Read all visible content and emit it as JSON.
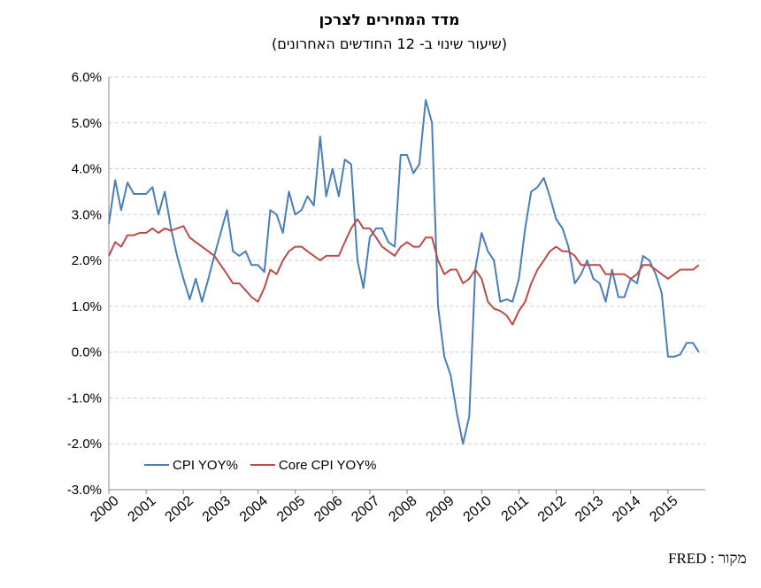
{
  "chart_data": {
    "type": "line",
    "title": "מדד המחירים לצרכן",
    "subtitle": "(שיעור שינוי ב- 12 החודשים האחרונים)",
    "source": "מקור : FRED",
    "x": [
      2000,
      2000.17,
      2000.33,
      2000.5,
      2000.67,
      2000.83,
      2001,
      2001.17,
      2001.33,
      2001.5,
      2001.67,
      2001.83,
      2002,
      2002.17,
      2002.33,
      2002.5,
      2002.67,
      2002.83,
      2003,
      2003.17,
      2003.33,
      2003.5,
      2003.67,
      2003.83,
      2004,
      2004.17,
      2004.33,
      2004.5,
      2004.67,
      2004.83,
      2005,
      2005.17,
      2005.33,
      2005.5,
      2005.67,
      2005.83,
      2006,
      2006.17,
      2006.33,
      2006.5,
      2006.67,
      2006.83,
      2007,
      2007.17,
      2007.33,
      2007.5,
      2007.67,
      2007.83,
      2008,
      2008.17,
      2008.33,
      2008.5,
      2008.67,
      2008.83,
      2009,
      2009.17,
      2009.33,
      2009.5,
      2009.67,
      2009.83,
      2010,
      2010.17,
      2010.33,
      2010.5,
      2010.67,
      2010.83,
      2011,
      2011.17,
      2011.33,
      2011.5,
      2011.67,
      2011.83,
      2012,
      2012.17,
      2012.33,
      2012.5,
      2012.67,
      2012.83,
      2013,
      2013.17,
      2013.33,
      2013.5,
      2013.67,
      2013.83,
      2014,
      2014.17,
      2014.33,
      2014.5,
      2014.67,
      2014.83,
      2015,
      2015.17,
      2015.33,
      2015.5,
      2015.67,
      2015.83
    ],
    "series": [
      {
        "name": "CPI YOY%",
        "color": "#4a7ebb",
        "values": [
          2.8,
          3.75,
          3.1,
          3.7,
          3.45,
          3.45,
          3.45,
          3.6,
          3.0,
          3.5,
          2.7,
          2.1,
          1.6,
          1.15,
          1.6,
          1.1,
          1.6,
          2.1,
          2.6,
          3.1,
          2.2,
          2.1,
          2.2,
          1.9,
          1.9,
          1.75,
          3.1,
          3.0,
          2.6,
          3.5,
          3.0,
          3.1,
          3.4,
          3.2,
          4.7,
          3.4,
          4.0,
          3.4,
          4.2,
          4.1,
          2.0,
          1.4,
          2.5,
          2.7,
          2.7,
          2.4,
          2.3,
          4.3,
          4.3,
          3.9,
          4.1,
          5.5,
          5.0,
          1.0,
          -0.1,
          -0.5,
          -1.3,
          -2.0,
          -1.4,
          1.8,
          2.6,
          2.2,
          2.0,
          1.1,
          1.15,
          1.1,
          1.6,
          2.7,
          3.5,
          3.6,
          3.8,
          3.4,
          2.9,
          2.7,
          2.3,
          1.5,
          1.7,
          2.0,
          1.6,
          1.5,
          1.1,
          1.8,
          1.2,
          1.2,
          1.6,
          1.5,
          2.1,
          2.0,
          1.7,
          1.3,
          -0.1,
          -0.1,
          -0.05,
          0.2,
          0.2,
          0.0
        ]
      },
      {
        "name": "Core CPI YOY%",
        "color": "#be4b48",
        "values": [
          2.1,
          2.4,
          2.3,
          2.55,
          2.55,
          2.6,
          2.6,
          2.7,
          2.6,
          2.7,
          2.65,
          2.7,
          2.75,
          2.5,
          2.4,
          2.3,
          2.2,
          2.1,
          1.9,
          1.7,
          1.5,
          1.5,
          1.35,
          1.2,
          1.1,
          1.4,
          1.8,
          1.7,
          2.0,
          2.2,
          2.3,
          2.3,
          2.2,
          2.1,
          2.0,
          2.1,
          2.1,
          2.1,
          2.4,
          2.7,
          2.9,
          2.7,
          2.7,
          2.5,
          2.3,
          2.2,
          2.1,
          2.3,
          2.4,
          2.3,
          2.3,
          2.5,
          2.5,
          2.0,
          1.7,
          1.8,
          1.8,
          1.5,
          1.6,
          1.8,
          1.6,
          1.1,
          0.95,
          0.9,
          0.8,
          0.6,
          0.9,
          1.1,
          1.5,
          1.8,
          2.0,
          2.2,
          2.3,
          2.2,
          2.2,
          2.1,
          1.9,
          1.9,
          1.9,
          1.9,
          1.7,
          1.7,
          1.7,
          1.7,
          1.6,
          1.7,
          1.9,
          1.9,
          1.8,
          1.7,
          1.6,
          1.7,
          1.8,
          1.8,
          1.8,
          1.9
        ]
      }
    ],
    "xlim": [
      2000,
      2016
    ],
    "xticks": [
      2000,
      2001,
      2002,
      2003,
      2004,
      2005,
      2006,
      2007,
      2008,
      2009,
      2010,
      2011,
      2012,
      2013,
      2014,
      2015
    ],
    "ylim": [
      -3,
      6
    ],
    "yticks": [
      {
        "value": -3,
        "label": "-3.0%"
      },
      {
        "value": -2,
        "label": "-2.0%"
      },
      {
        "value": -1,
        "label": "-1.0%"
      },
      {
        "value": 0,
        "label": "0.0%"
      },
      {
        "value": 1,
        "label": "1.0%"
      },
      {
        "value": 2,
        "label": "2.0%"
      },
      {
        "value": 3,
        "label": "3.0%"
      },
      {
        "value": 4,
        "label": "4.0%"
      },
      {
        "value": 5,
        "label": "5.0%"
      },
      {
        "value": 6,
        "label": "6.0%"
      }
    ],
    "grid": true,
    "legend": "lower left"
  }
}
